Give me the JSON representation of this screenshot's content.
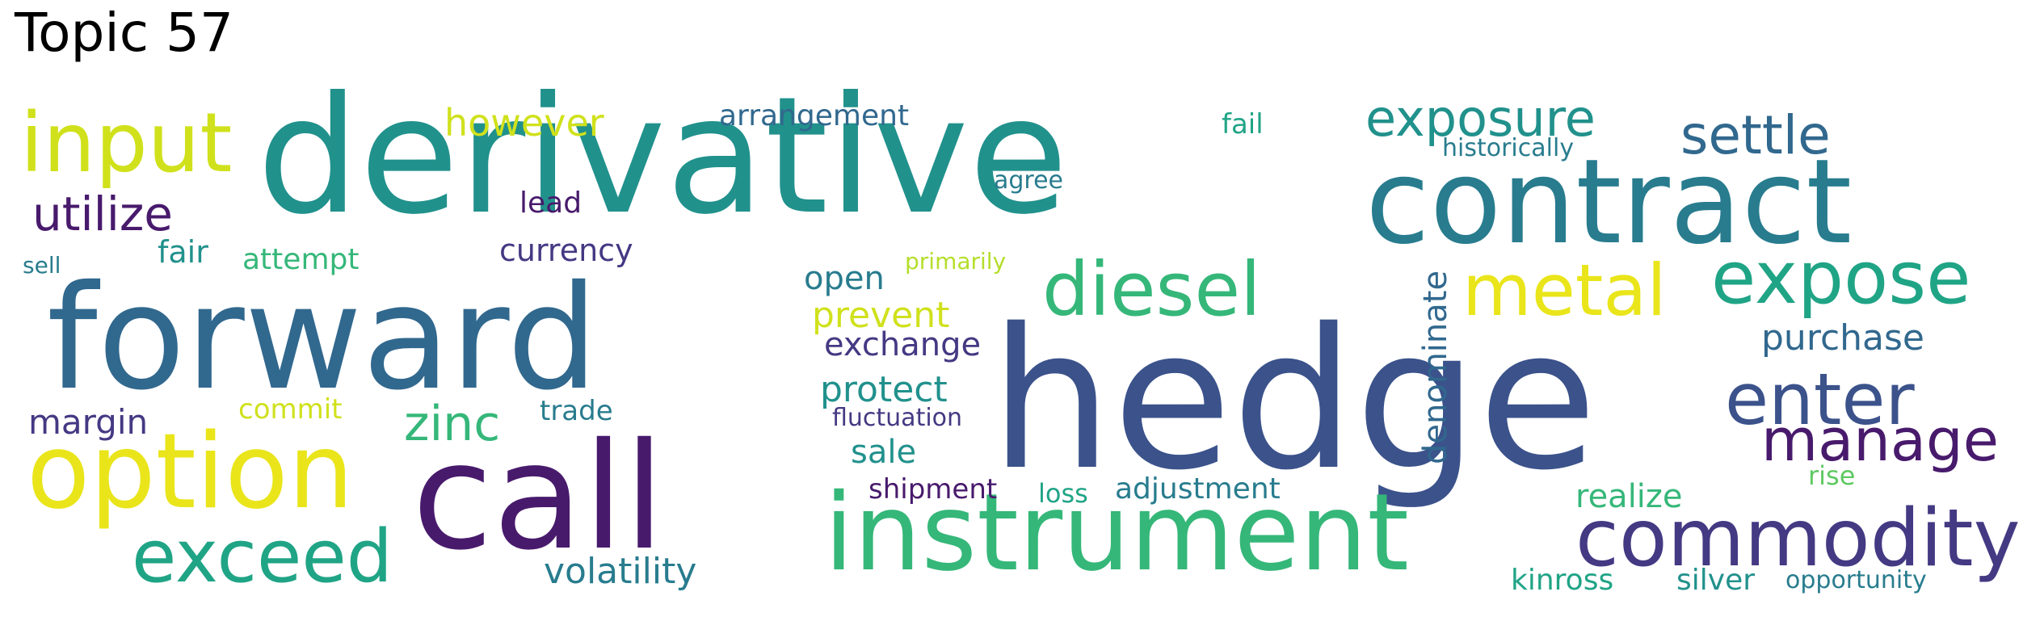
{
  "title": "Topic 57",
  "palette": {
    "dark_purple": "#481a6c",
    "indigo": "#443983",
    "blue": "#3b528b",
    "steel_blue": "#31688e",
    "teal_blue": "#287c8e",
    "teal": "#21918c",
    "green_teal": "#20a486",
    "green": "#35b779",
    "light_green": "#5ec962",
    "lime": "#b5de2b",
    "yellow_green": "#d0e11c",
    "yellow": "#e9e51a"
  },
  "words": [
    {
      "text": "derivative",
      "color": "teal"
    },
    {
      "text": "hedge",
      "color": "blue"
    },
    {
      "text": "forward",
      "color": "steel_blue"
    },
    {
      "text": "call",
      "color": "dark_purple"
    },
    {
      "text": "contract",
      "color": "teal_blue"
    },
    {
      "text": "instrument",
      "color": "green"
    },
    {
      "text": "option",
      "color": "yellow"
    },
    {
      "text": "commodity",
      "color": "indigo"
    },
    {
      "text": "input",
      "color": "yellow_green"
    },
    {
      "text": "exceed",
      "color": "green_teal"
    },
    {
      "text": "expose",
      "color": "green_teal"
    },
    {
      "text": "diesel",
      "color": "green"
    },
    {
      "text": "metal",
      "color": "yellow"
    },
    {
      "text": "enter",
      "color": "blue"
    },
    {
      "text": "manage",
      "color": "dark_purple"
    },
    {
      "text": "exposure",
      "color": "teal"
    },
    {
      "text": "settle",
      "color": "steel_blue"
    },
    {
      "text": "utilize",
      "color": "dark_purple"
    },
    {
      "text": "zinc",
      "color": "green"
    },
    {
      "text": "however",
      "color": "yellow_green"
    },
    {
      "text": "purchase",
      "color": "steel_blue"
    },
    {
      "text": "prevent",
      "color": "yellow_green"
    },
    {
      "text": "protect",
      "color": "teal"
    },
    {
      "text": "volatility",
      "color": "teal_blue"
    },
    {
      "text": "margin",
      "color": "indigo"
    },
    {
      "text": "denominate",
      "color": "steel_blue"
    },
    {
      "text": "exchange",
      "color": "indigo"
    },
    {
      "text": "realize",
      "color": "green"
    },
    {
      "text": "open",
      "color": "teal_blue"
    },
    {
      "text": "sale",
      "color": "teal"
    },
    {
      "text": "arrangement",
      "color": "steel_blue"
    },
    {
      "text": "currency",
      "color": "indigo"
    },
    {
      "text": "fair",
      "color": "teal"
    },
    {
      "text": "attempt",
      "color": "green"
    },
    {
      "text": "adjustment",
      "color": "teal_blue"
    },
    {
      "text": "kinross",
      "color": "green_teal"
    },
    {
      "text": "silver",
      "color": "teal"
    },
    {
      "text": "lead",
      "color": "dark_purple"
    },
    {
      "text": "shipment",
      "color": "dark_purple"
    },
    {
      "text": "commit",
      "color": "yellow_green"
    },
    {
      "text": "trade",
      "color": "teal_blue"
    },
    {
      "text": "fail",
      "color": "green_teal"
    },
    {
      "text": "rise",
      "color": "light_green"
    },
    {
      "text": "loss",
      "color": "green_teal"
    },
    {
      "text": "historically",
      "color": "teal_blue"
    },
    {
      "text": "fluctuation",
      "color": "indigo"
    },
    {
      "text": "opportunity",
      "color": "teal_blue"
    },
    {
      "text": "agree",
      "color": "teal_blue"
    },
    {
      "text": "primarily",
      "color": "lime"
    },
    {
      "text": "sell",
      "color": "teal_blue"
    }
  ]
}
